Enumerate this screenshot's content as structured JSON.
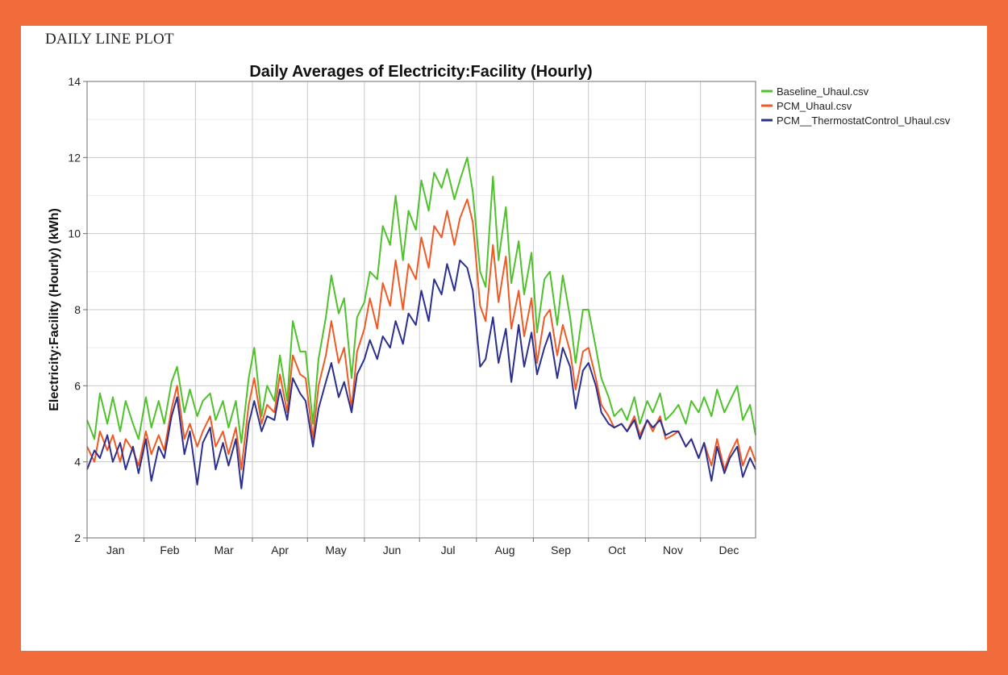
{
  "page": {
    "heading": "DAILY LINE PLOT",
    "background_color": "#f26b3a",
    "panel_color": "#ffffff"
  },
  "chart_data": {
    "type": "line",
    "title": "Daily Averages of Electricity:Facility (Hourly)",
    "xlabel": "",
    "ylabel": "Electricity:Facility (Hourly) (kWh)",
    "ylim": [
      2,
      14
    ],
    "y_ticks": [
      2,
      4,
      6,
      8,
      10,
      12,
      14
    ],
    "x_unit": "day of year",
    "xlim": [
      1,
      365
    ],
    "months": [
      "Jan",
      "Feb",
      "Mar",
      "Apr",
      "May",
      "Jun",
      "Jul",
      "Aug",
      "Sep",
      "Oct",
      "Nov",
      "Dec"
    ],
    "month_start_days": [
      1,
      32,
      60,
      91,
      121,
      152,
      182,
      213,
      244,
      274,
      305,
      335
    ],
    "grid": true,
    "legend_position": "top-right outside",
    "series": [
      {
        "name": "Baseline_Uhaul.csv",
        "color": "#4fc12b",
        "x": [
          1,
          5,
          8,
          12,
          15,
          19,
          22,
          26,
          29,
          33,
          36,
          40,
          43,
          47,
          50,
          54,
          57,
          61,
          64,
          68,
          71,
          75,
          78,
          82,
          85,
          89,
          92,
          96,
          99,
          103,
          106,
          110,
          113,
          117,
          120,
          124,
          127,
          131,
          134,
          138,
          141,
          145,
          148,
          152,
          155,
          159,
          162,
          166,
          169,
          173,
          176,
          180,
          183,
          187,
          190,
          194,
          197,
          201,
          204,
          208,
          211,
          215,
          218,
          222,
          225,
          229,
          232,
          236,
          239,
          243,
          246,
          250,
          253,
          257,
          260,
          264,
          267,
          271,
          274,
          278,
          281,
          285,
          288,
          292,
          295,
          299,
          302,
          306,
          309,
          313,
          316,
          320,
          323,
          327,
          330,
          334,
          337,
          341,
          344,
          348,
          351,
          355,
          358,
          362,
          365
        ],
        "y": [
          5.1,
          4.6,
          5.8,
          5.0,
          5.7,
          4.8,
          5.6,
          5.0,
          4.6,
          5.7,
          4.9,
          5.6,
          5.0,
          6.1,
          6.5,
          5.3,
          5.9,
          5.2,
          5.6,
          5.8,
          5.1,
          5.6,
          4.9,
          5.6,
          4.5,
          6.2,
          7.0,
          5.2,
          6.0,
          5.6,
          6.8,
          5.6,
          7.7,
          6.9,
          6.9,
          5.0,
          6.7,
          7.8,
          8.9,
          7.9,
          8.3,
          6.2,
          7.8,
          8.2,
          9.0,
          8.8,
          10.2,
          9.7,
          11.0,
          9.3,
          10.6,
          10.1,
          11.4,
          10.6,
          11.6,
          11.2,
          11.7,
          10.9,
          11.4,
          12.0,
          11.1,
          9.0,
          8.6,
          11.5,
          9.3,
          10.7,
          8.7,
          9.8,
          8.4,
          9.5,
          7.4,
          8.8,
          9.0,
          7.6,
          8.9,
          7.8,
          6.6,
          8.0,
          8.0,
          7.0,
          6.2,
          5.7,
          5.2,
          5.4,
          5.1,
          5.7,
          5.0,
          5.6,
          5.3,
          5.8,
          5.1,
          5.3,
          5.5,
          5.0,
          5.6,
          5.3,
          5.7,
          5.2,
          5.9,
          5.3,
          5.6,
          6.0,
          5.1,
          5.5,
          4.7
        ]
      },
      {
        "name": "PCM_Uhaul.csv",
        "color": "#ef5a24",
        "x": [
          1,
          5,
          8,
          12,
          15,
          19,
          22,
          26,
          29,
          33,
          36,
          40,
          43,
          47,
          50,
          54,
          57,
          61,
          64,
          68,
          71,
          75,
          78,
          82,
          85,
          89,
          92,
          96,
          99,
          103,
          106,
          110,
          113,
          117,
          120,
          124,
          127,
          131,
          134,
          138,
          141,
          145,
          148,
          152,
          155,
          159,
          162,
          166,
          169,
          173,
          176,
          180,
          183,
          187,
          190,
          194,
          197,
          201,
          204,
          208,
          211,
          215,
          218,
          222,
          225,
          229,
          232,
          236,
          239,
          243,
          246,
          250,
          253,
          257,
          260,
          264,
          267,
          271,
          274,
          278,
          281,
          285,
          288,
          292,
          295,
          299,
          302,
          306,
          309,
          313,
          316,
          320,
          323,
          327,
          330,
          334,
          337,
          341,
          344,
          348,
          351,
          355,
          358,
          362,
          365
        ],
        "y": [
          4.4,
          4.0,
          4.8,
          4.3,
          4.7,
          4.0,
          4.6,
          4.3,
          3.9,
          4.8,
          4.2,
          4.7,
          4.3,
          5.4,
          6.0,
          4.6,
          5.0,
          4.4,
          4.8,
          5.2,
          4.4,
          4.8,
          4.2,
          4.9,
          3.8,
          5.5,
          6.2,
          5.0,
          5.5,
          5.3,
          6.3,
          5.3,
          6.8,
          6.3,
          6.2,
          4.6,
          6.0,
          6.8,
          7.7,
          6.6,
          7.0,
          5.4,
          6.9,
          7.5,
          8.3,
          7.5,
          8.7,
          8.1,
          9.3,
          8.0,
          9.2,
          8.8,
          9.9,
          9.1,
          10.2,
          9.9,
          10.6,
          9.7,
          10.4,
          10.9,
          10.3,
          8.1,
          7.7,
          9.7,
          8.2,
          9.4,
          7.5,
          8.5,
          7.3,
          8.3,
          6.6,
          7.8,
          8.0,
          6.8,
          7.6,
          6.9,
          5.9,
          6.9,
          7.0,
          6.2,
          5.5,
          5.2,
          4.9,
          5.0,
          4.8,
          5.2,
          4.7,
          5.1,
          4.8,
          5.2,
          4.6,
          4.7,
          4.8,
          4.4,
          4.6,
          4.1,
          4.5,
          3.9,
          4.6,
          3.8,
          4.2,
          4.6,
          3.9,
          4.4,
          4.0
        ]
      },
      {
        "name": "PCM__ThermostatControl_Uhaul.csv",
        "color": "#2b2f8f",
        "x": [
          1,
          5,
          8,
          12,
          15,
          19,
          22,
          26,
          29,
          33,
          36,
          40,
          43,
          47,
          50,
          54,
          57,
          61,
          64,
          68,
          71,
          75,
          78,
          82,
          85,
          89,
          92,
          96,
          99,
          103,
          106,
          110,
          113,
          117,
          120,
          124,
          127,
          131,
          134,
          138,
          141,
          145,
          148,
          152,
          155,
          159,
          162,
          166,
          169,
          173,
          176,
          180,
          183,
          187,
          190,
          194,
          197,
          201,
          204,
          208,
          211,
          215,
          218,
          222,
          225,
          229,
          232,
          236,
          239,
          243,
          246,
          250,
          253,
          257,
          260,
          264,
          267,
          271,
          274,
          278,
          281,
          285,
          288,
          292,
          295,
          299,
          302,
          306,
          309,
          313,
          316,
          320,
          323,
          327,
          330,
          334,
          337,
          341,
          344,
          348,
          351,
          355,
          358,
          362,
          365
        ],
        "y": [
          3.8,
          4.3,
          4.1,
          4.7,
          4.0,
          4.5,
          3.8,
          4.4,
          3.7,
          4.6,
          3.5,
          4.4,
          4.1,
          5.2,
          5.7,
          4.2,
          4.8,
          3.4,
          4.5,
          4.9,
          3.8,
          4.5,
          3.9,
          4.6,
          3.3,
          5.0,
          5.6,
          4.8,
          5.2,
          5.1,
          5.9,
          5.1,
          6.2,
          5.8,
          5.6,
          4.4,
          5.4,
          6.1,
          6.6,
          5.7,
          6.1,
          5.3,
          6.3,
          6.7,
          7.2,
          6.7,
          7.3,
          7.0,
          7.7,
          7.1,
          7.9,
          7.6,
          8.5,
          7.7,
          8.8,
          8.4,
          9.2,
          8.5,
          9.3,
          9.1,
          8.5,
          6.5,
          6.7,
          7.8,
          6.6,
          7.5,
          6.1,
          7.6,
          6.5,
          7.4,
          6.3,
          7.0,
          7.4,
          6.2,
          7.0,
          6.5,
          5.4,
          6.4,
          6.6,
          6.0,
          5.3,
          5.0,
          4.9,
          5.0,
          4.8,
          5.1,
          4.6,
          5.1,
          4.9,
          5.1,
          4.7,
          4.8,
          4.8,
          4.4,
          4.6,
          4.1,
          4.5,
          3.5,
          4.4,
          3.7,
          4.1,
          4.4,
          3.6,
          4.1,
          3.8
        ]
      }
    ]
  }
}
